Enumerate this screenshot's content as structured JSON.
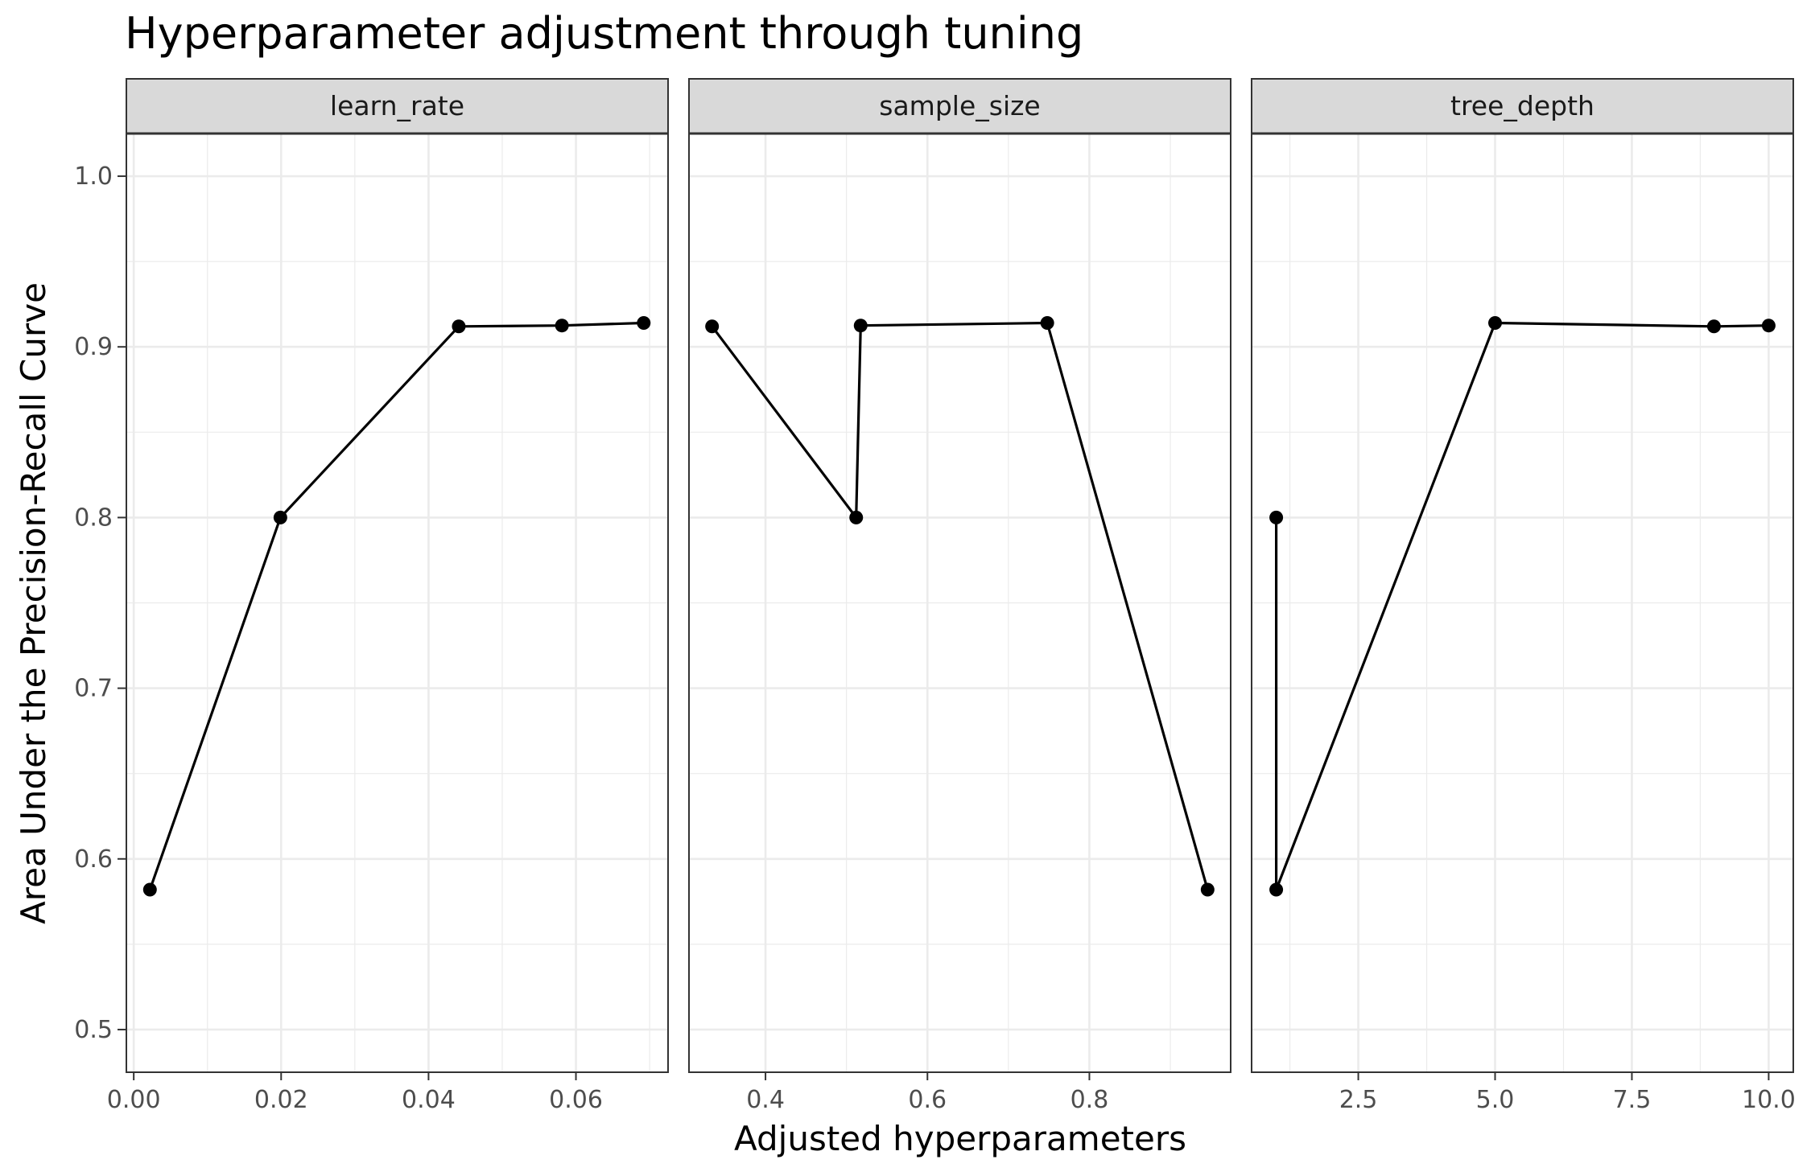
{
  "chart_data": {
    "type": "line",
    "title": "Hyperparameter adjustment through tuning",
    "xlabel": "Adjusted hyperparameters",
    "ylabel": "Area Under the Precision-Recall Curve",
    "ylim": [
      0.475,
      1.025
    ],
    "y_ticks": [
      0.5,
      0.6,
      0.7,
      0.8,
      0.9,
      1.0
    ],
    "y_tick_labels": [
      "0.5",
      "0.6",
      "0.7",
      "0.8",
      "0.9",
      "1.0"
    ],
    "grid": true,
    "colors": {
      "line": "#000000",
      "strip": "#d9d9d9",
      "grid": "#ebebeb",
      "frame": "#333333"
    },
    "facets": [
      {
        "name": "learn_rate",
        "xlim": [
          -0.001,
          0.0725
        ],
        "x_ticks": [
          0.0,
          0.02,
          0.04,
          0.06
        ],
        "x_tick_labels": [
          "0.00",
          "0.02",
          "0.04",
          "0.06"
        ],
        "x_minor": [
          0.01,
          0.03,
          0.05,
          0.07
        ],
        "points": [
          {
            "x": 0.0022,
            "y": 0.582
          },
          {
            "x": 0.0199,
            "y": 0.8
          },
          {
            "x": 0.0441,
            "y": 0.912
          },
          {
            "x": 0.0581,
            "y": 0.9125
          },
          {
            "x": 0.0692,
            "y": 0.914
          }
        ]
      },
      {
        "name": "sample_size",
        "xlim": [
          0.3055,
          0.9745
        ],
        "x_ticks": [
          0.4,
          0.6,
          0.8
        ],
        "x_tick_labels": [
          "0.4",
          "0.6",
          "0.8"
        ],
        "x_minor": [
          0.3,
          0.5,
          0.7,
          0.9
        ],
        "points": [
          {
            "x": 0.334,
            "y": 0.912
          },
          {
            "x": 0.512,
            "y": 0.8
          },
          {
            "x": 0.5175,
            "y": 0.9125
          },
          {
            "x": 0.748,
            "y": 0.914
          },
          {
            "x": 0.946,
            "y": 0.582
          }
        ]
      },
      {
        "name": "tree_depth",
        "xlim": [
          0.55,
          10.45
        ],
        "x_ticks": [
          2.5,
          5.0,
          7.5,
          10.0
        ],
        "x_tick_labels": [
          "2.5",
          "5.0",
          "7.5",
          "10.0"
        ],
        "x_minor": [
          1.25,
          3.75,
          6.25,
          8.75
        ],
        "points": [
          {
            "x": 1,
            "y": 0.8
          },
          {
            "x": 1,
            "y": 0.582
          },
          {
            "x": 5,
            "y": 0.914
          },
          {
            "x": 9,
            "y": 0.912
          },
          {
            "x": 10,
            "y": 0.9125
          }
        ]
      }
    ]
  }
}
